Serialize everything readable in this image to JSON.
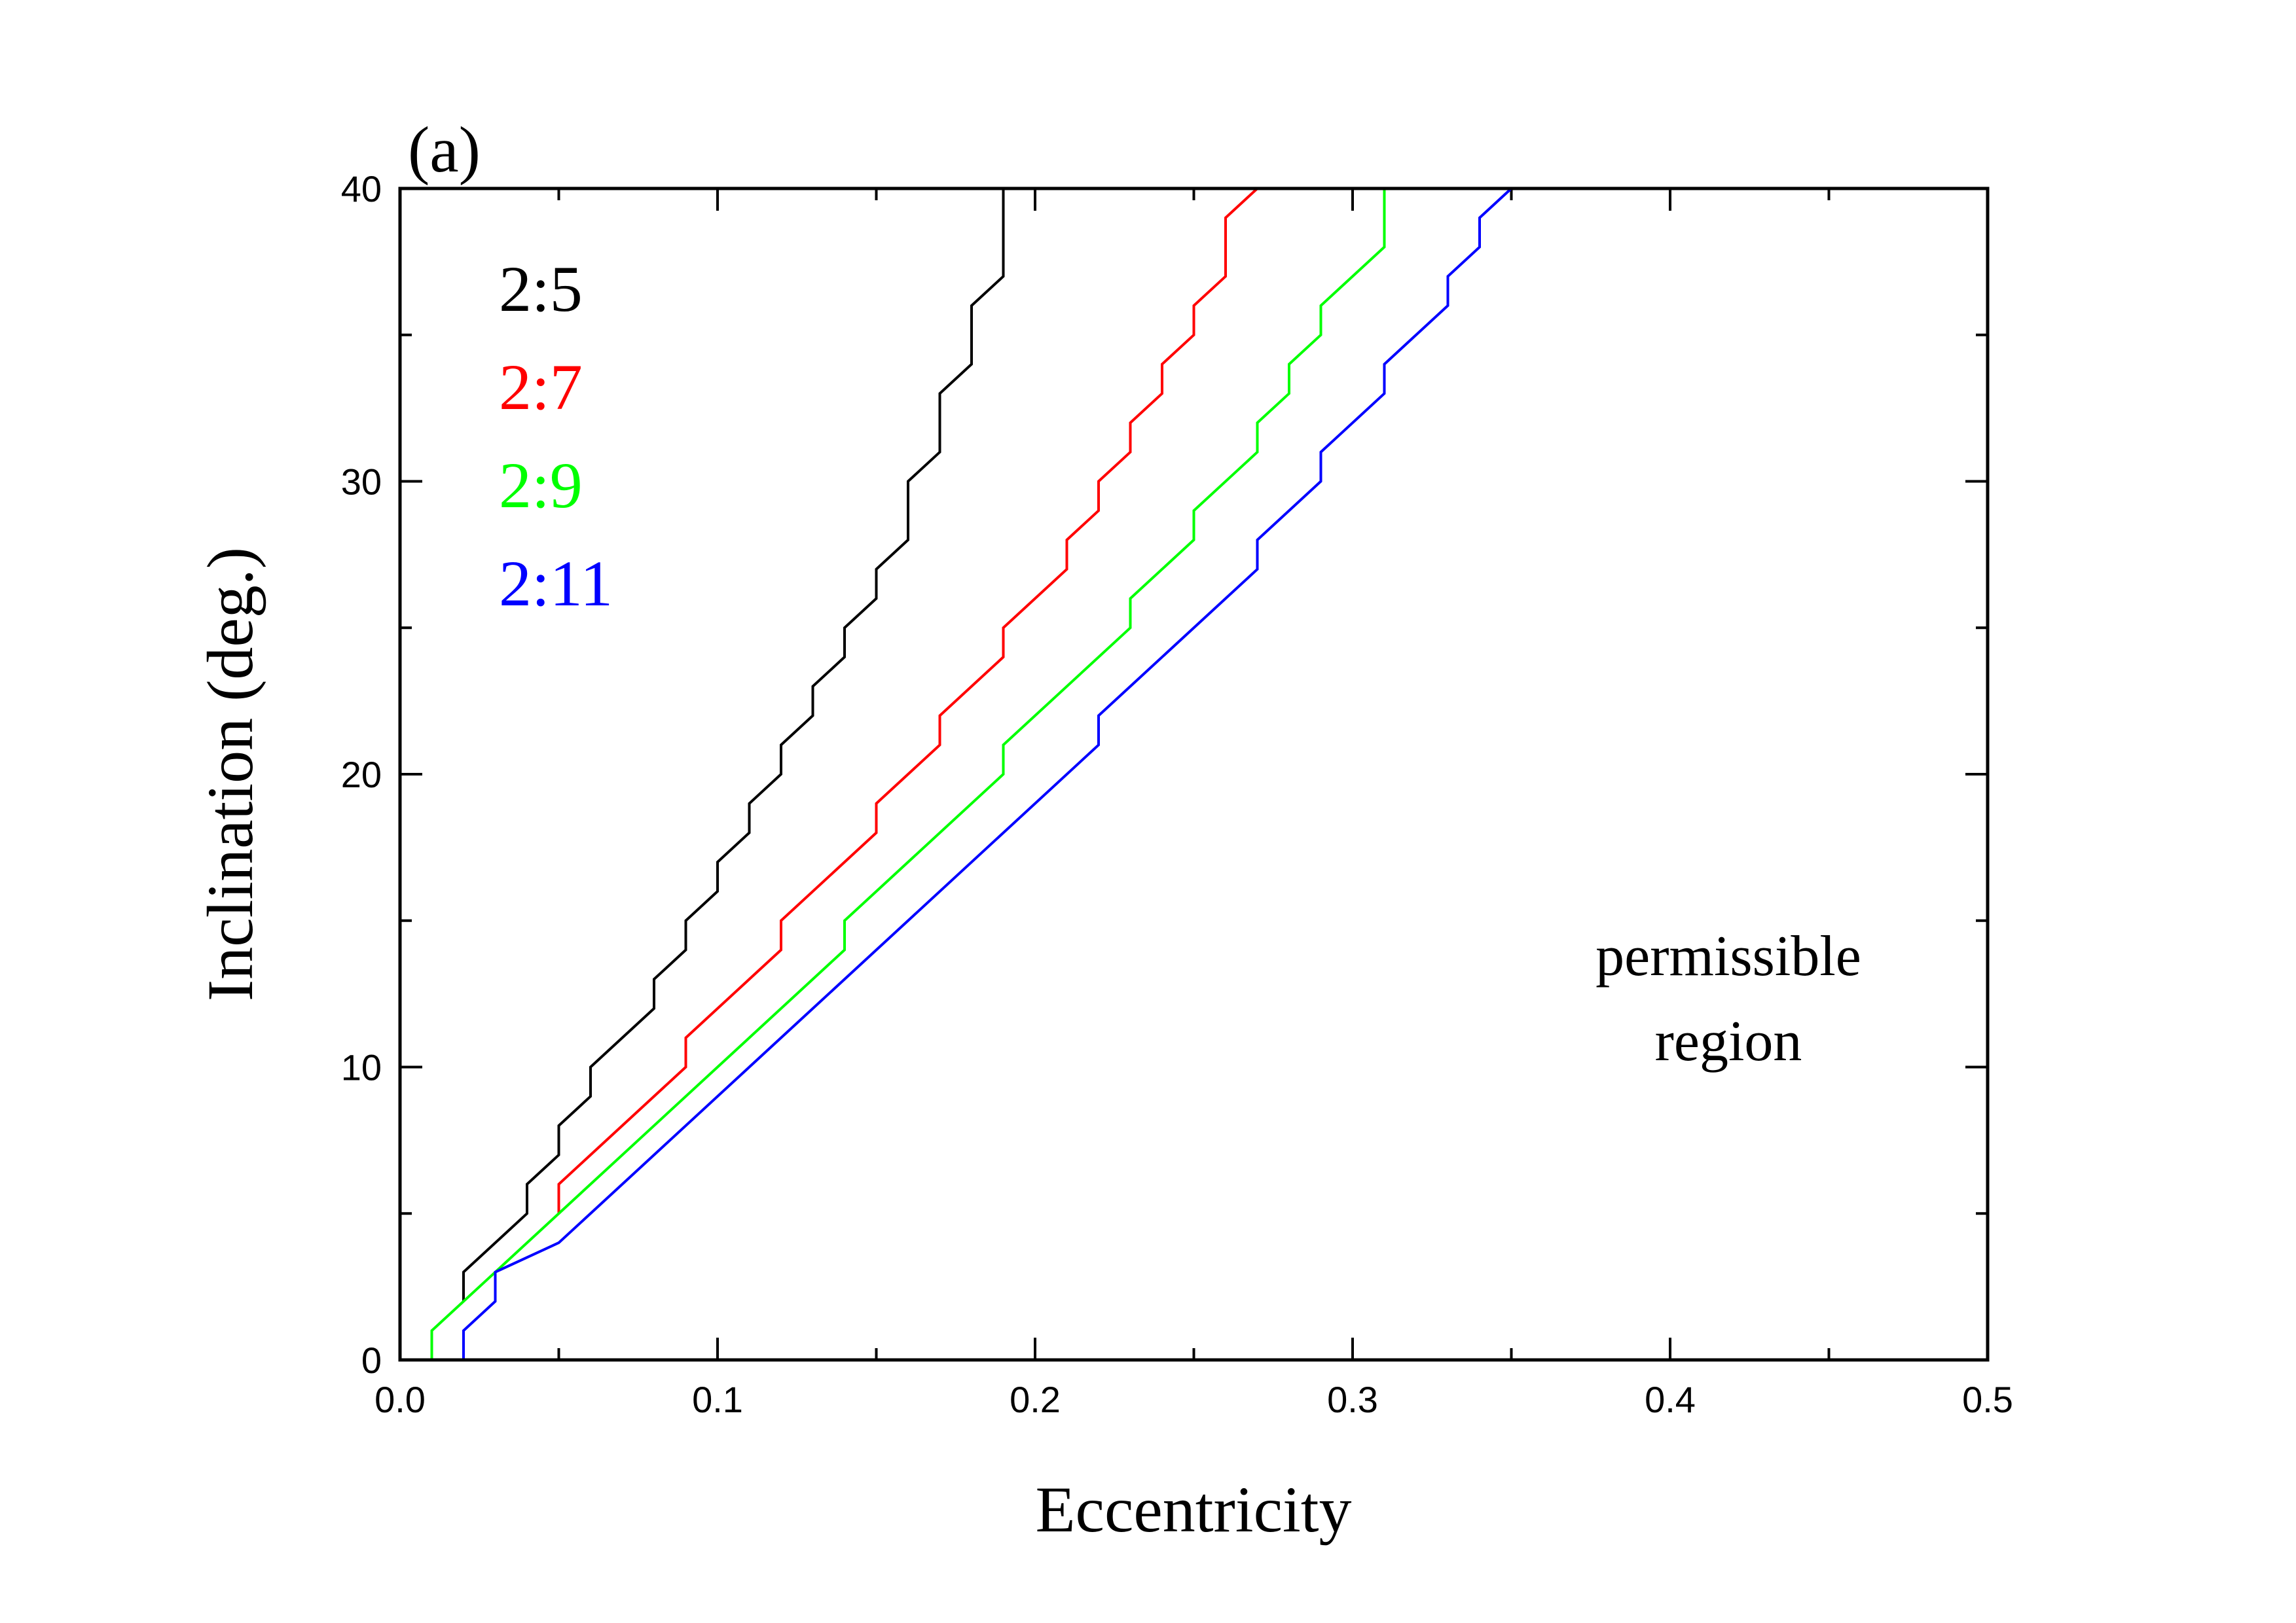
{
  "chart_data": {
    "type": "line",
    "panel_label": "(a)",
    "title": "",
    "xlabel": "Eccentricity",
    "ylabel": "Inclination (deg.)",
    "xlim": [
      0.0,
      0.5
    ],
    "ylim": [
      0,
      40
    ],
    "xticks": [
      0.0,
      0.1,
      0.2,
      0.3,
      0.4,
      0.5
    ],
    "xtick_labels": [
      "0.0",
      "0.1",
      "0.2",
      "0.3",
      "0.4",
      "0.5"
    ],
    "yticks": [
      0,
      10,
      20,
      30,
      40
    ],
    "ytick_labels": [
      "0",
      "10",
      "20",
      "30",
      "40"
    ],
    "grid": false,
    "legend_position": "top-left",
    "annotations": [
      {
        "text": "permissible",
        "x": 0.42,
        "y": 14
      },
      {
        "text": "region",
        "x": 0.42,
        "y": 11
      }
    ],
    "series": [
      {
        "name": "2:5",
        "color": "#000000",
        "points": [
          [
            0.02,
            2
          ],
          [
            0.02,
            3
          ],
          [
            0.04,
            5
          ],
          [
            0.04,
            6
          ],
          [
            0.05,
            7
          ],
          [
            0.05,
            8
          ],
          [
            0.06,
            9
          ],
          [
            0.06,
            10
          ],
          [
            0.08,
            12
          ],
          [
            0.08,
            13
          ],
          [
            0.09,
            14
          ],
          [
            0.09,
            15
          ],
          [
            0.1,
            16
          ],
          [
            0.1,
            17
          ],
          [
            0.11,
            18
          ],
          [
            0.11,
            19
          ],
          [
            0.12,
            20
          ],
          [
            0.12,
            21
          ],
          [
            0.13,
            22
          ],
          [
            0.13,
            23
          ],
          [
            0.14,
            24
          ],
          [
            0.14,
            25
          ],
          [
            0.15,
            26
          ],
          [
            0.15,
            27
          ],
          [
            0.16,
            28
          ],
          [
            0.16,
            30
          ],
          [
            0.17,
            31
          ],
          [
            0.17,
            33
          ],
          [
            0.18,
            34
          ],
          [
            0.18,
            36
          ],
          [
            0.19,
            37
          ],
          [
            0.19,
            40
          ]
        ]
      },
      {
        "name": "2:7",
        "color": "#ff0000",
        "points": [
          [
            0.05,
            5
          ],
          [
            0.05,
            6
          ],
          [
            0.09,
            10
          ],
          [
            0.09,
            11
          ],
          [
            0.12,
            14
          ],
          [
            0.12,
            15
          ],
          [
            0.15,
            18
          ],
          [
            0.15,
            19
          ],
          [
            0.17,
            21
          ],
          [
            0.17,
            22
          ],
          [
            0.19,
            24
          ],
          [
            0.19,
            25
          ],
          [
            0.21,
            27
          ],
          [
            0.21,
            28
          ],
          [
            0.22,
            29
          ],
          [
            0.22,
            30
          ],
          [
            0.23,
            31
          ],
          [
            0.23,
            32
          ],
          [
            0.24,
            33
          ],
          [
            0.24,
            34
          ],
          [
            0.25,
            35
          ],
          [
            0.25,
            36
          ],
          [
            0.26,
            37
          ],
          [
            0.26,
            39
          ],
          [
            0.27,
            40
          ]
        ]
      },
      {
        "name": "2:9",
        "color": "#00ff00",
        "points": [
          [
            0.01,
            0
          ],
          [
            0.01,
            1
          ],
          [
            0.14,
            14
          ],
          [
            0.14,
            15
          ],
          [
            0.19,
            20
          ],
          [
            0.19,
            21
          ],
          [
            0.23,
            25
          ],
          [
            0.23,
            26
          ],
          [
            0.25,
            28
          ],
          [
            0.25,
            29
          ],
          [
            0.27,
            31
          ],
          [
            0.27,
            32
          ],
          [
            0.28,
            33
          ],
          [
            0.28,
            34
          ],
          [
            0.29,
            35
          ],
          [
            0.29,
            36
          ],
          [
            0.31,
            38
          ],
          [
            0.31,
            40
          ]
        ]
      },
      {
        "name": "2:11",
        "color": "#0000ff",
        "points": [
          [
            0.02,
            0
          ],
          [
            0.02,
            1
          ],
          [
            0.03,
            2
          ],
          [
            0.03,
            3
          ],
          [
            0.05,
            4
          ],
          [
            0.22,
            21
          ],
          [
            0.22,
            22
          ],
          [
            0.27,
            27
          ],
          [
            0.27,
            28
          ],
          [
            0.29,
            30
          ],
          [
            0.29,
            31
          ],
          [
            0.31,
            33
          ],
          [
            0.31,
            34
          ],
          [
            0.33,
            36
          ],
          [
            0.33,
            37
          ],
          [
            0.34,
            38
          ],
          [
            0.34,
            39
          ],
          [
            0.35,
            40
          ]
        ]
      }
    ]
  }
}
